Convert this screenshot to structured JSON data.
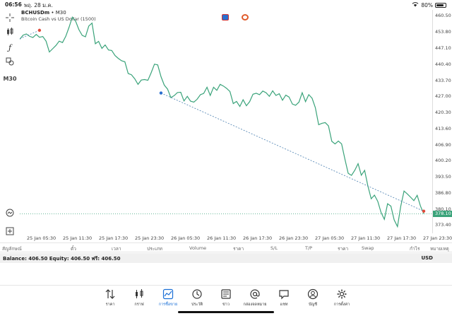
{
  "status": {
    "time": "06:56",
    "date": "พฤ. 28 ม.ค.",
    "battery": "80%",
    "battery_level": 0.8
  },
  "chart": {
    "symbol": "BCHUSDm",
    "timeframe_suffix": " • M30",
    "subtitle": "Bitcoin Cash vs US Dollar (1500)",
    "timeframe_button": "M30",
    "current_price": "378.10",
    "price_labels": [
      "460.50",
      "453.80",
      "447.10",
      "440.40",
      "433.70",
      "427.00",
      "420.30",
      "413.60",
      "406.90",
      "400.20",
      "393.50",
      "386.80",
      "380.10",
      "373.40"
    ],
    "time_labels": [
      "25 Jan 05:30",
      "25 Jan 11:30",
      "25 Jan 17:30",
      "25 Jan 23:30",
      "26 Jan 05:30",
      "26 Jan 11:30",
      "26 Jan 17:30",
      "26 Jan 23:30",
      "27 Jan 05:30",
      "27 Jan 11:30",
      "27 Jan 17:30",
      "27 Jan 23:30"
    ]
  },
  "chart_data": {
    "type": "line",
    "ylim": [
      370.0,
      463.0
    ],
    "y": [
      450.8,
      452.5,
      453.0,
      452.0,
      451.5,
      452.8,
      451.6,
      451.9,
      450.0,
      445.5,
      446.8,
      448.2,
      450.0,
      449.4,
      452.0,
      455.8,
      460.0,
      458.3,
      454.8,
      452.4,
      451.8,
      456.3,
      457.5,
      448.9,
      449.9,
      447.0,
      448.4,
      446.3,
      446.1,
      444.0,
      442.8,
      441.8,
      441.4,
      436.5,
      436.0,
      434.3,
      432.0,
      433.8,
      434.0,
      433.7,
      436.8,
      440.4,
      440.1,
      435.2,
      431.7,
      430.0,
      426.5,
      427.3,
      428.6,
      428.7,
      425.1,
      427.0,
      425.0,
      424.6,
      425.8,
      427.7,
      428.2,
      430.8,
      427.4,
      430.8,
      429.5,
      432.0,
      431.3,
      430.3,
      429.0,
      424.0,
      424.9,
      422.8,
      425.6,
      423.1,
      424.8,
      427.9,
      428.3,
      427.7,
      429.2,
      428.5,
      427.0,
      429.3,
      427.4,
      428.1,
      425.4,
      427.5,
      426.7,
      423.8,
      423.3,
      424.6,
      428.5,
      424.8,
      427.7,
      426.2,
      422.3,
      415.2,
      415.8,
      416.1,
      414.7,
      408.3,
      407.2,
      408.4,
      407.2,
      400.8,
      395.0,
      394.1,
      396.2,
      399.0,
      394.2,
      396.2,
      389.7,
      384.4,
      385.9,
      383.3,
      378.7,
      375.8,
      382.3,
      381.3,
      375.6,
      372.8,
      381.2,
      387.6,
      386.4,
      385.0,
      383.6,
      385.8,
      381.4,
      378.1
    ],
    "trendlines": [
      {
        "from": [
          0,
          451.0
        ],
        "to": [
          6,
          454.5
        ]
      },
      {
        "from": [
          43,
          428.4
        ],
        "to": [
          123,
          379.2
        ]
      }
    ],
    "markers": [
      {
        "index": 6,
        "value": 454.5,
        "color": "#e04b3b"
      },
      {
        "index": 43,
        "value": 428.4,
        "color": "#2b6fcf"
      },
      {
        "index": 123,
        "value": 379.2,
        "color": "#e04b3b"
      }
    ],
    "current_price_line": 378.1,
    "line_color": "#3aa37a"
  },
  "orders_header": [
    "สัญลักษณ์",
    "ตั๋ว",
    "เวลา",
    "ประเภท",
    "Volume",
    "ราคา",
    "S/L",
    "T/P",
    "ราคา",
    "Swap",
    "กำไร",
    "หมายเหตุ"
  ],
  "balance": {
    "text": "Balance: 406.50 Equity: 406.50 ฟรี: 406.50",
    "currency": "USD"
  },
  "nav": [
    {
      "label": "ราคา",
      "icon": "arrows-icon"
    },
    {
      "label": "กราฟ",
      "icon": "candles-icon"
    },
    {
      "label": "การซื้อขาย",
      "icon": "chart-line-icon"
    },
    {
      "label": "ประวัติ",
      "icon": "history-icon"
    },
    {
      "label": "ข่าว",
      "icon": "news-icon"
    },
    {
      "label": "กล่องจดหมาย",
      "icon": "at-icon"
    },
    {
      "label": "แชท",
      "icon": "chat-icon"
    },
    {
      "label": "บัญชี",
      "icon": "account-icon"
    },
    {
      "label": "การตั้งค่า",
      "icon": "gear-icon"
    }
  ]
}
